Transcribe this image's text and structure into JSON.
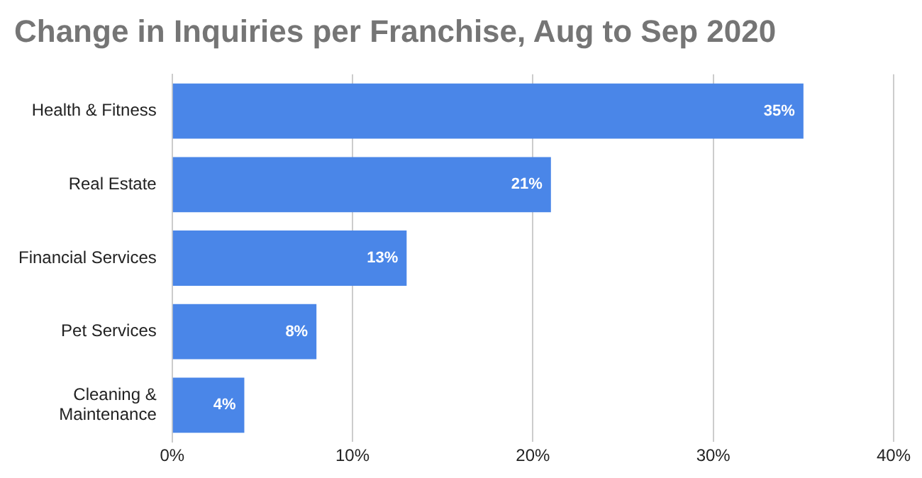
{
  "chart_data": {
    "type": "bar",
    "orientation": "horizontal",
    "title": "Change in Inquiries per Franchise, Aug to Sep 2020",
    "categories": [
      "Health & Fitness",
      "Real Estate",
      "Financial Services",
      "Pet Services",
      [
        "Cleaning &",
        "Maintenance"
      ]
    ],
    "values": [
      35,
      21,
      13,
      8,
      4
    ],
    "color": "#4a86e8",
    "value_labels": [
      "35%",
      "21%",
      "13%",
      "8%",
      "4%"
    ],
    "xlim": [
      0,
      40
    ],
    "xticks": [
      {
        "value": 0,
        "label": "0%"
      },
      {
        "value": 10,
        "label": "10%"
      },
      {
        "value": 20,
        "label": "20%"
      },
      {
        "value": 30,
        "label": "30%"
      },
      {
        "value": 40,
        "label": "40%"
      }
    ],
    "grid": "x",
    "legend": false
  }
}
